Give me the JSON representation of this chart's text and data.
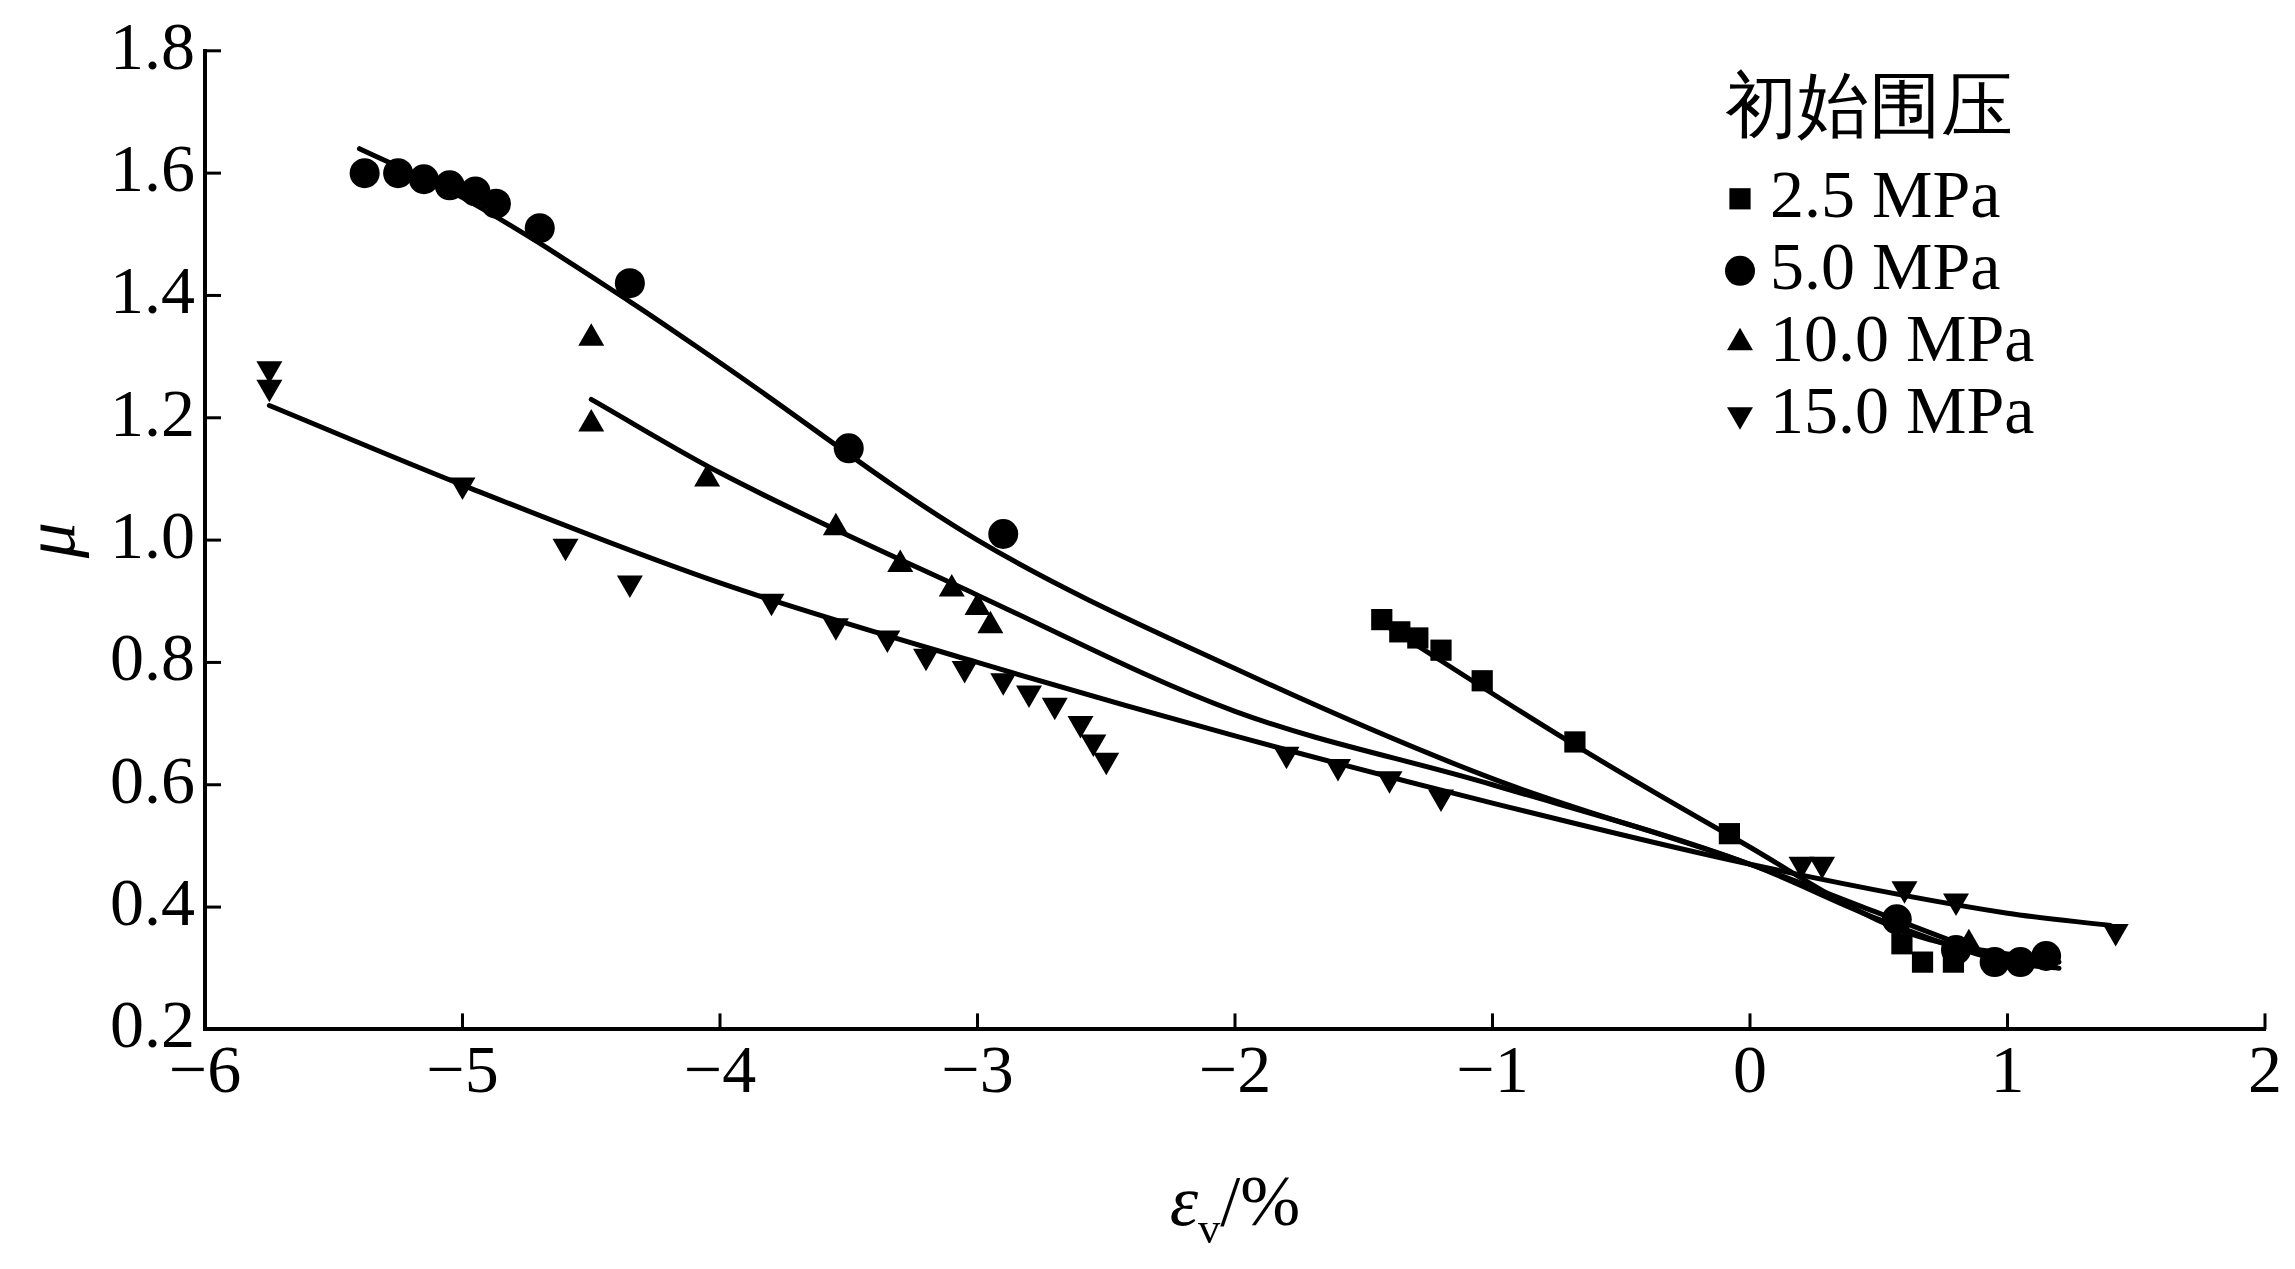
{
  "chart_data": {
    "type": "scatter",
    "xlabel": "ε$_{v}$/%",
    "ylabel": "μ",
    "legend_title": "初始围压",
    "legend": "top right",
    "grid": false,
    "xlim": [
      -6,
      2
    ],
    "xticks": [
      -6,
      -5,
      -4,
      -3,
      -2,
      -1,
      0,
      1,
      2
    ],
    "ylim": [
      0.2,
      1.8
    ],
    "yticks": [
      0.2,
      0.4,
      0.6,
      0.8,
      {
        "value": 1,
        "label": "1.0"
      },
      1.2,
      1.4,
      1.6,
      1.8
    ],
    "series": [
      {
        "name": "2.5 MPa",
        "color": "#000000",
        "marker": "square",
        "x": [
          -1.43,
          -1.36,
          -1.29,
          -1.2,
          -1.04,
          -0.68,
          -0.08,
          0.59,
          0.67,
          0.79
        ],
        "values": [
          0.87,
          0.85,
          0.84,
          0.82,
          0.77,
          0.67,
          0.52,
          0.34,
          0.31,
          0.31
        ]
      },
      {
        "name": "5.0 MPa",
        "color": "#000000",
        "marker": "circle",
        "x": [
          -5.38,
          -5.25,
          -5.15,
          -5.05,
          -4.95,
          -4.87,
          -4.7,
          -4.35,
          -3.5,
          -2.9,
          0.57,
          0.8,
          0.95,
          1.05,
          1.15
        ],
        "values": [
          1.6,
          1.6,
          1.59,
          1.58,
          1.57,
          1.55,
          1.51,
          1.42,
          1.15,
          1.01,
          0.38,
          0.33,
          0.31,
          0.31,
          0.32
        ]
      },
      {
        "name": "10.0 MPa",
        "color": "#000000",
        "marker": "triangle",
        "x": [
          -4.5,
          -4.5,
          -4.05,
          -3.55,
          -3.3,
          -3.1,
          -3.0,
          -2.95,
          0.85
        ],
        "values": [
          1.33,
          1.19,
          1.1,
          1.02,
          0.96,
          0.92,
          0.89,
          0.86,
          0.34
        ]
      },
      {
        "name": "15.0 MPa",
        "color": "#000000",
        "marker": "triangle-down",
        "x": [
          -5.75,
          -5.75,
          -5.0,
          -4.6,
          -4.35,
          -3.8,
          -3.55,
          -3.35,
          -3.2,
          -3.05,
          -2.9,
          -2.8,
          -2.7,
          -2.6,
          -2.55,
          -2.5,
          -1.8,
          -1.6,
          -1.4,
          -1.2,
          0.2,
          0.28,
          0.6,
          0.8,
          1.42
        ],
        "values": [
          1.28,
          1.25,
          1.09,
          0.99,
          0.93,
          0.9,
          0.86,
          0.84,
          0.81,
          0.79,
          0.77,
          0.75,
          0.73,
          0.7,
          0.67,
          0.64,
          0.65,
          0.63,
          0.61,
          0.58,
          0.47,
          0.47,
          0.43,
          0.41,
          0.36
        ]
      },
      {
        "type": "line",
        "color": "#000000",
        "marker": "none",
        "line_style": "solid",
        "x": [
          -1.45,
          -0.7,
          -0.05,
          0.6,
          1.2
        ],
        "values": [
          0.87,
          0.67,
          0.51,
          0.36,
          0.31
        ]
      },
      {
        "type": "line",
        "color": "#000000",
        "marker": "none",
        "line_style": "solid",
        "x": [
          -5.4,
          -5,
          -4.35,
          -4,
          -3,
          -2,
          -1,
          0,
          0.5,
          1.0
        ],
        "values": [
          1.64,
          1.56,
          1.39,
          1.29,
          1.0,
          0.79,
          0.61,
          0.47,
          0.39,
          0.31
        ]
      },
      {
        "type": "line",
        "color": "#000000",
        "marker": "none",
        "line_style": "solid",
        "x": [
          -4.5,
          -4,
          -3,
          -2,
          -1,
          0,
          0.5,
          1.0,
          1.2
        ],
        "values": [
          1.23,
          1.11,
          0.91,
          0.72,
          0.6,
          0.47,
          0.38,
          0.31,
          0.3
        ]
      },
      {
        "type": "line",
        "color": "#000000",
        "marker": "none",
        "line_style": "solid",
        "x": [
          -5.75,
          -5,
          -4,
          -3,
          -2,
          -1,
          0,
          1,
          1.4
        ],
        "values": [
          1.22,
          1.09,
          0.93,
          0.8,
          0.68,
          0.57,
          0.47,
          0.39,
          0.37
        ]
      }
    ]
  }
}
